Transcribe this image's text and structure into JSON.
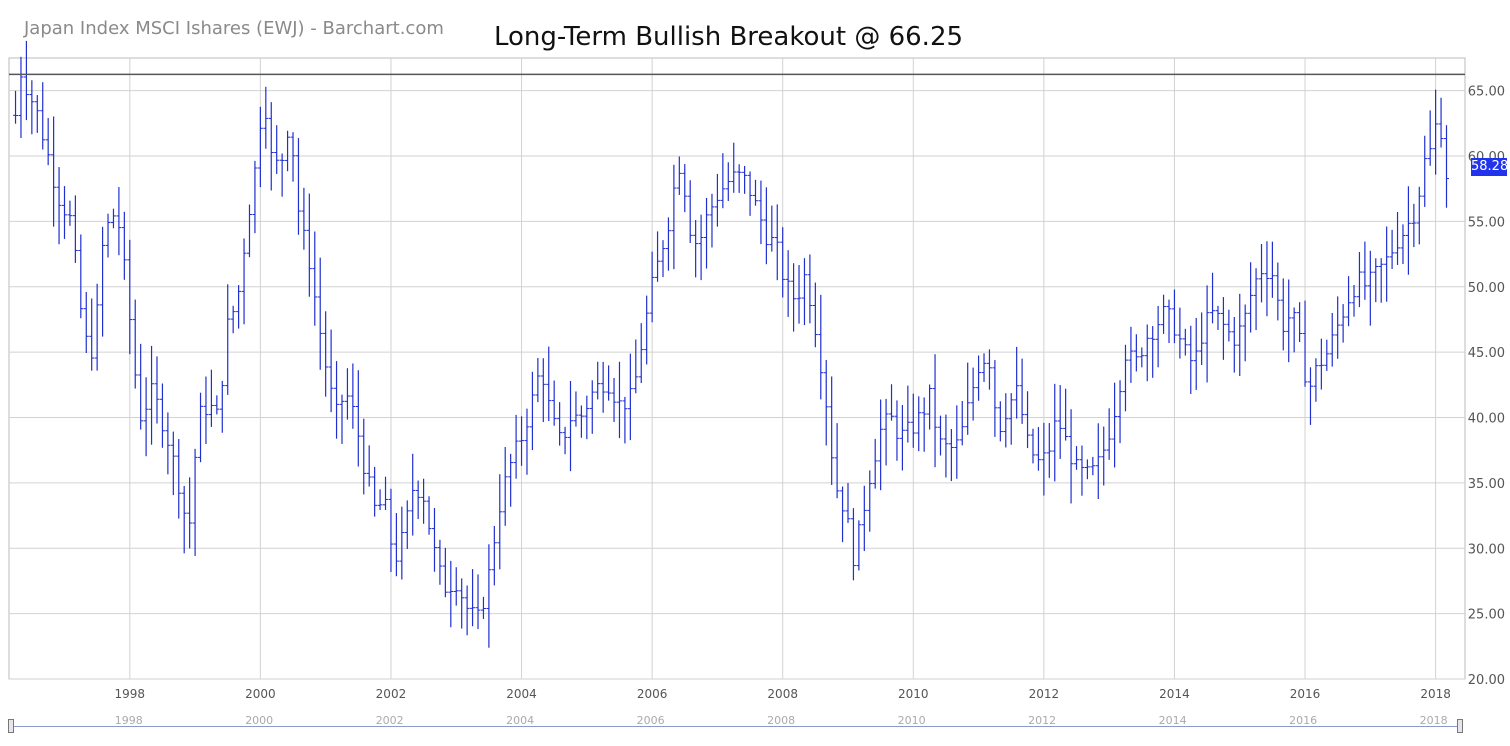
{
  "header": {
    "source_label": "Japan Index MSCI Ishares (EWJ) - Barchart.com",
    "headline": "Long-Term Bullish Breakout @ 66.25"
  },
  "last_price_badge": "58.28",
  "colors": {
    "bars": "#1f2fd0",
    "grid": "#d2d2d2",
    "resistance": "#555555",
    "badge": "#2233ee",
    "axis_text": "#555555",
    "navigator_line": "#8a9acc"
  },
  "navigator": {
    "labels": [
      "1998",
      "2000",
      "2002",
      "2004",
      "2006",
      "2008",
      "2010",
      "2012",
      "2014",
      "2016",
      "2018"
    ]
  },
  "chart_data": {
    "type": "ohlc",
    "interval": "monthly",
    "series": [
      {
        "name": "EWJ"
      }
    ],
    "title": "Long-Term Bullish Breakout @ 66.25",
    "subtitle": "Japan Index MSCI Ishares (EWJ) - Barchart.com",
    "xlim": [
      1996.15,
      2018.45
    ],
    "ylim": [
      20,
      67.5
    ],
    "y_ticks": [
      65,
      60,
      55,
      50,
      45,
      40,
      35,
      30,
      25,
      20
    ],
    "y_tick_labels": [
      "65.00",
      "60.00",
      "55.00",
      "50.00",
      "45.00",
      "40.00",
      "35.00",
      "30.00",
      "25.00",
      "20.00"
    ],
    "x_ticks": [
      1998,
      2000,
      2002,
      2004,
      2006,
      2008,
      2010,
      2012,
      2014,
      2016,
      2018
    ],
    "x_tick_labels": [
      "1998",
      "2000",
      "2002",
      "2004",
      "2006",
      "2008",
      "2010",
      "2012",
      "2014",
      "2016",
      "2018"
    ],
    "grid": true,
    "y_axis_side": "right",
    "resistance_level": 66.25,
    "last_value": 58.28,
    "close_anchors": [
      [
        1996.2,
        61.0
      ],
      [
        1996.33,
        66.5
      ],
      [
        1996.6,
        63.0
      ],
      [
        1996.9,
        57.0
      ],
      [
        1997.1,
        55.0
      ],
      [
        1997.3,
        46.0
      ],
      [
        1997.45,
        45.0
      ],
      [
        1997.6,
        54.0
      ],
      [
        1997.8,
        56.0
      ],
      [
        1997.95,
        50.0
      ],
      [
        1998.15,
        40.0
      ],
      [
        1998.35,
        42.0
      ],
      [
        1998.55,
        39.0
      ],
      [
        1998.75,
        35.0
      ],
      [
        1998.9,
        31.0
      ],
      [
        1999.05,
        40.0
      ],
      [
        1999.2,
        41.0
      ],
      [
        1999.35,
        40.0
      ],
      [
        1999.5,
        47.0
      ],
      [
        1999.65,
        49.0
      ],
      [
        1999.8,
        55.0
      ],
      [
        1999.95,
        60.0
      ],
      [
        2000.05,
        65.5
      ],
      [
        2000.15,
        60.0
      ],
      [
        2000.3,
        59.0
      ],
      [
        2000.45,
        63.0
      ],
      [
        2000.6,
        55.0
      ],
      [
        2000.75,
        52.0
      ],
      [
        2000.9,
        47.0
      ],
      [
        2001.0,
        44.0
      ],
      [
        2001.15,
        40.0
      ],
      [
        2001.3,
        42.0
      ],
      [
        2001.45,
        40.0
      ],
      [
        2001.6,
        36.0
      ],
      [
        2001.75,
        33.0
      ],
      [
        2001.9,
        33.5
      ],
      [
        2002.05,
        29.0
      ],
      [
        2002.2,
        31.0
      ],
      [
        2002.35,
        35.0
      ],
      [
        2002.5,
        34.0
      ],
      [
        2002.65,
        30.0
      ],
      [
        2002.8,
        27.0
      ],
      [
        2003.0,
        27.5
      ],
      [
        2003.2,
        25.0
      ],
      [
        2003.35,
        24.5
      ],
      [
        2003.5,
        28.0
      ],
      [
        2003.65,
        33.0
      ],
      [
        2003.8,
        36.0
      ],
      [
        2004.0,
        38.5
      ],
      [
        2004.15,
        41.0
      ],
      [
        2004.3,
        44.0
      ],
      [
        2004.45,
        40.0
      ],
      [
        2004.6,
        38.0
      ],
      [
        2004.75,
        40.0
      ],
      [
        2004.9,
        40.0
      ],
      [
        2005.1,
        42.0
      ],
      [
        2005.3,
        43.0
      ],
      [
        2005.5,
        41.0
      ],
      [
        2005.7,
        41.5
      ],
      [
        2005.85,
        46.0
      ],
      [
        2006.0,
        50.0
      ],
      [
        2006.15,
        53.0
      ],
      [
        2006.25,
        55.0
      ],
      [
        2006.35,
        58.0
      ],
      [
        2006.45,
        60.0
      ],
      [
        2006.55,
        55.0
      ],
      [
        2006.7,
        53.0
      ],
      [
        2006.85,
        55.5
      ],
      [
        2007.0,
        57.0
      ],
      [
        2007.15,
        58.0
      ],
      [
        2007.3,
        58.5
      ],
      [
        2007.45,
        58.0
      ],
      [
        2007.6,
        56.0
      ],
      [
        2007.75,
        54.0
      ],
      [
        2007.9,
        53.0
      ],
      [
        2008.05,
        50.0
      ],
      [
        2008.2,
        49.0
      ],
      [
        2008.35,
        51.0
      ],
      [
        2008.5,
        47.0
      ],
      [
        2008.65,
        42.0
      ],
      [
        2008.8,
        35.0
      ],
      [
        2008.95,
        33.0
      ],
      [
        2009.1,
        29.0
      ],
      [
        2009.2,
        32.0
      ],
      [
        2009.35,
        36.0
      ],
      [
        2009.5,
        39.0
      ],
      [
        2009.65,
        40.0
      ],
      [
        2009.8,
        38.5
      ],
      [
        2009.95,
        39.0
      ],
      [
        2010.1,
        40.0
      ],
      [
        2010.25,
        41.5
      ],
      [
        2010.4,
        38.0
      ],
      [
        2010.55,
        37.5
      ],
      [
        2010.7,
        38.0
      ],
      [
        2010.85,
        41.0
      ],
      [
        2011.0,
        44.0
      ],
      [
        2011.15,
        45.0
      ],
      [
        2011.3,
        39.0
      ],
      [
        2011.45,
        41.0
      ],
      [
        2011.6,
        42.0
      ],
      [
        2011.75,
        38.0
      ],
      [
        2011.9,
        36.5
      ],
      [
        2012.05,
        37.0
      ],
      [
        2012.2,
        40.0
      ],
      [
        2012.35,
        38.0
      ],
      [
        2012.5,
        36.0
      ],
      [
        2012.65,
        35.5
      ],
      [
        2012.8,
        36.0
      ],
      [
        2012.95,
        38.0
      ],
      [
        2013.1,
        41.0
      ],
      [
        2013.25,
        45.0
      ],
      [
        2013.4,
        44.0
      ],
      [
        2013.55,
        46.0
      ],
      [
        2013.7,
        47.0
      ],
      [
        2013.85,
        48.0
      ],
      [
        2014.0,
        47.0
      ],
      [
        2014.15,
        45.0
      ],
      [
        2014.3,
        44.0
      ],
      [
        2014.45,
        47.0
      ],
      [
        2014.6,
        48.0
      ],
      [
        2014.75,
        47.0
      ],
      [
        2014.9,
        46.0
      ],
      [
        2015.05,
        47.0
      ],
      [
        2015.2,
        50.0
      ],
      [
        2015.35,
        51.5
      ],
      [
        2015.5,
        51.0
      ],
      [
        2015.65,
        47.0
      ],
      [
        2015.8,
        48.0
      ],
      [
        2015.95,
        45.0
      ],
      [
        2016.05,
        42.0
      ],
      [
        2016.2,
        44.0
      ],
      [
        2016.35,
        45.0
      ],
      [
        2016.5,
        47.0
      ],
      [
        2016.65,
        49.0
      ],
      [
        2016.8,
        50.5
      ],
      [
        2016.95,
        50.0
      ],
      [
        2017.1,
        51.0
      ],
      [
        2017.25,
        52.0
      ],
      [
        2017.4,
        53.5
      ],
      [
        2017.55,
        54.5
      ],
      [
        2017.7,
        56.0
      ],
      [
        2017.85,
        60.0
      ],
      [
        2017.95,
        60.5
      ],
      [
        2018.05,
        64.0
      ],
      [
        2018.12,
        60.0
      ],
      [
        2018.2,
        58.28
      ]
    ]
  }
}
